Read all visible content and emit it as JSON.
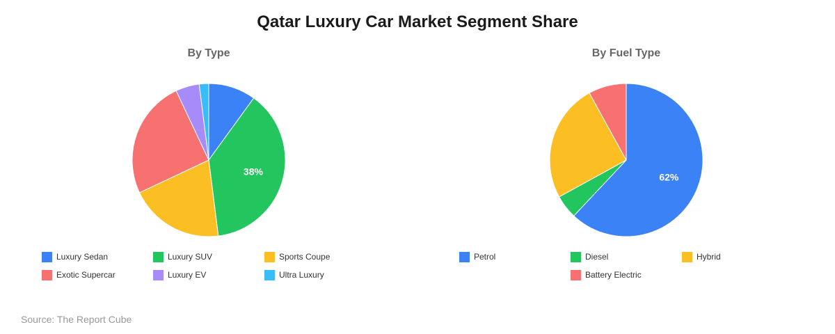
{
  "title": "Qatar Luxury Car Market Segment Share",
  "source": "Source: The Report Cube",
  "chart_data": [
    {
      "type": "pie",
      "title": "By Type",
      "categories": [
        "Luxury Sedan",
        "Luxury SUV",
        "Sports Coupe",
        "Exotic Supercar",
        "Luxury EV",
        "Ultra Luxury"
      ],
      "values": [
        10,
        38,
        20,
        25,
        5,
        2
      ],
      "colors": [
        "#3b82f6",
        "#22c55e",
        "#fbbf24",
        "#f87171",
        "#a78bfa",
        "#38bdf8"
      ],
      "labels_shown": {
        "Luxury SUV": "38%"
      },
      "legend_position": "bottom",
      "start_angle": "top, clockwise"
    },
    {
      "type": "pie",
      "title": "By Fuel Type",
      "categories": [
        "Petrol",
        "Diesel",
        "Hybrid",
        "Battery Electric"
      ],
      "values": [
        62,
        5,
        25,
        8
      ],
      "colors": [
        "#3b82f6",
        "#22c55e",
        "#fbbf24",
        "#f87171"
      ],
      "labels_shown": {
        "Petrol": "62%"
      },
      "legend_position": "bottom",
      "start_angle": "top, clockwise"
    }
  ]
}
